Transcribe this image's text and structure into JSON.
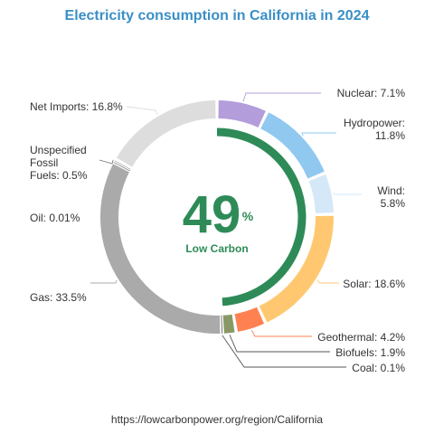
{
  "title": "Electricity consumption in California in 2024",
  "source": "https://lowcarbonpower.org/region/California",
  "center": {
    "value": "49",
    "unit": "%",
    "label": "Low Carbon",
    "low_carbon_fraction": 0.49,
    "color": "#2e8b57"
  },
  "chart_data": {
    "type": "pie",
    "variant": "donut",
    "title": "Electricity consumption in California in 2024",
    "slices": [
      {
        "name": "Nuclear",
        "value": 7.1,
        "label": "Nuclear: 7.1%",
        "color": "#b39ddb"
      },
      {
        "name": "Hydropower",
        "value": 11.8,
        "label": [
          "Hydropower:",
          "11.8%"
        ],
        "color": "#90c8f0"
      },
      {
        "name": "Wind",
        "value": 5.8,
        "label": [
          "Wind:",
          "5.8%"
        ],
        "color": "#d4e8f8"
      },
      {
        "name": "Solar",
        "value": 18.6,
        "label": "Solar: 18.6%",
        "color": "#ffc870"
      },
      {
        "name": "Geothermal",
        "value": 4.2,
        "label": "Geothermal: 4.2%",
        "color": "#ff8050"
      },
      {
        "name": "Biofuels",
        "value": 1.9,
        "label": "Biofuels: 1.9%",
        "color": "#889966"
      },
      {
        "name": "Coal",
        "value": 0.1,
        "label": "Coal: 0.1%",
        "color": "#555555"
      },
      {
        "name": "Gas",
        "value": 33.5,
        "label": "Gas: 33.5%",
        "color": "#aaaaaa"
      },
      {
        "name": "Oil",
        "value": 0.01,
        "label": "Oil: 0.01%",
        "color": "#888888"
      },
      {
        "name": "Unspecified Fossil Fuels",
        "value": 0.5,
        "label": [
          "Unspecified",
          "Fossil",
          "Fuels: 0.5%"
        ],
        "color": "#777777"
      },
      {
        "name": "Net Imports",
        "value": 16.8,
        "label": "Net Imports: 16.8%",
        "color": "#dddddd"
      }
    ]
  }
}
